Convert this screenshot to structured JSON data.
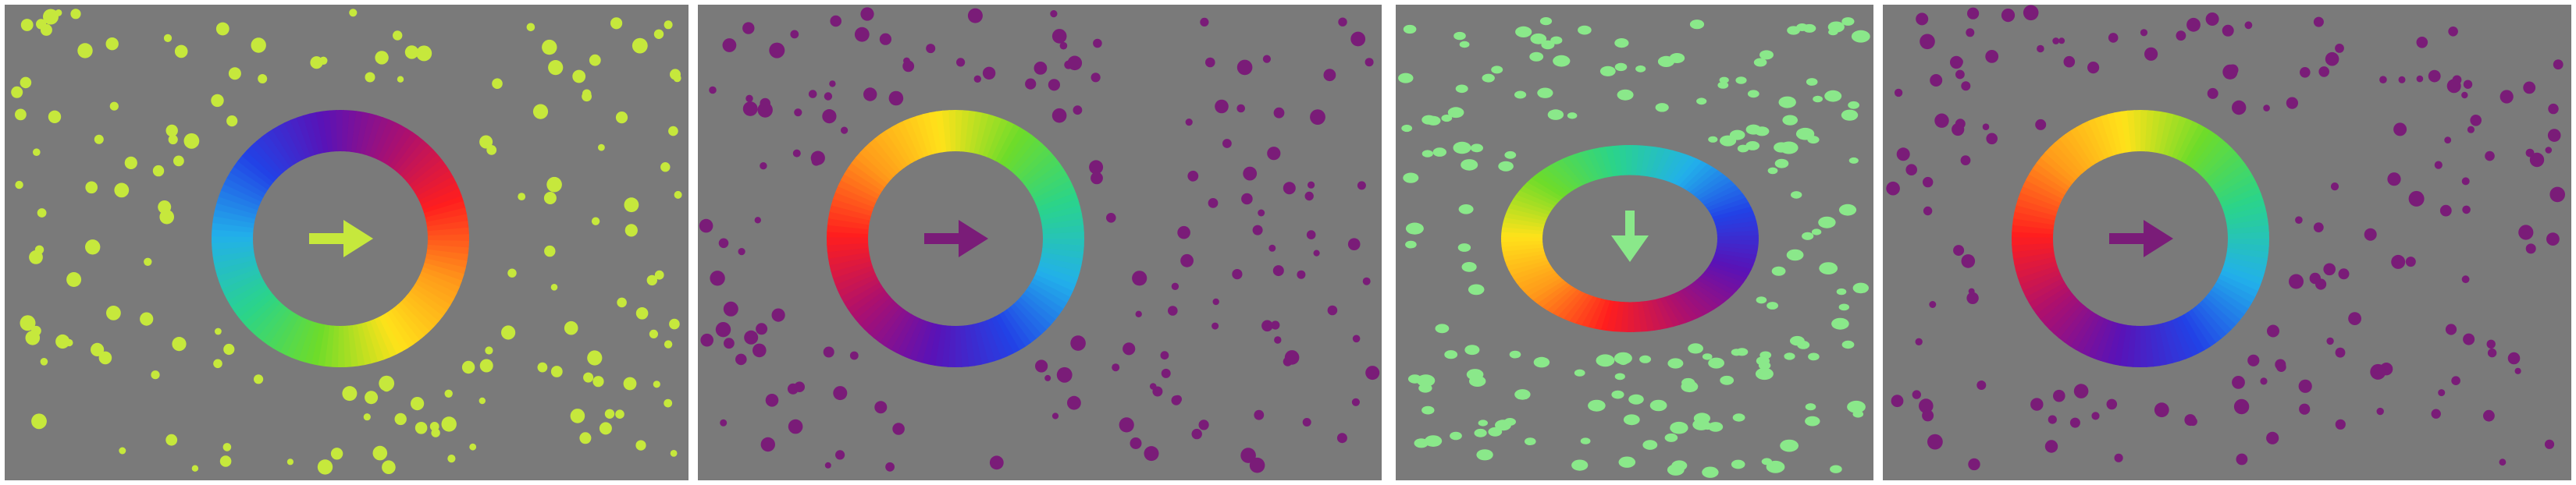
{
  "colors": {
    "background": "#ffffff",
    "panel": "#7a7a7a",
    "yellow_green": "#c6e83c",
    "purple": "#7a1c78",
    "mint_green": "#8ae88a",
    "ring_hues": [
      "#ff1e1e",
      "#ff9a1a",
      "#ffe21a",
      "#6edc2a",
      "#2ad48a",
      "#22b0ea",
      "#2242e6",
      "#5a12b6",
      "#aa1070",
      "#ff1e1e"
    ]
  },
  "panels": [
    {
      "id": "panel-1",
      "dot_color": "yellow_green",
      "arrow_color": "yellow_green",
      "arrow_direction": "right",
      "ring_shape": "circle",
      "ring_rotation_deg": -20
    },
    {
      "id": "panel-2",
      "dot_color": "purple",
      "arrow_color": "purple",
      "arrow_direction": "right",
      "ring_shape": "circle",
      "ring_rotation_deg": 180
    },
    {
      "id": "panel-3",
      "dot_color": "mint_green",
      "arrow_color": "mint_green",
      "arrow_direction": "down",
      "ring_shape": "ellipse",
      "ring_rotation_deg": 100
    },
    {
      "id": "panel-4",
      "dot_color": "purple",
      "arrow_color": "purple",
      "arrow_direction": "right",
      "ring_shape": "circle",
      "ring_rotation_deg": 180
    }
  ]
}
